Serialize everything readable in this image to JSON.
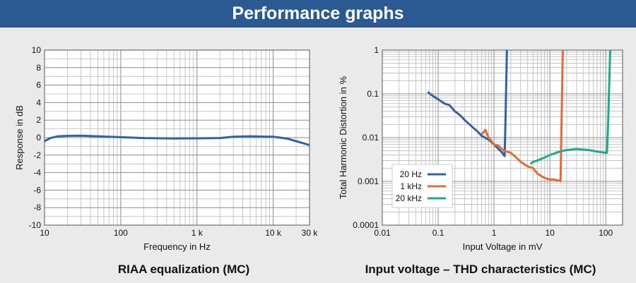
{
  "header": {
    "title": "Performance graphs"
  },
  "captions": {
    "left": "RIAA equalization (MC)",
    "right": "Input voltage – THD characteristics (MC)"
  },
  "chart_data": [
    {
      "type": "line",
      "xscale": "log",
      "xlim": [
        10,
        30000
      ],
      "ylim": [
        -10,
        10
      ],
      "xlabel": "Frequency in Hz",
      "ylabel": "Response in dB",
      "xticks": [
        10,
        100,
        1000,
        10000,
        30000
      ],
      "xtick_labels": [
        "10",
        "100",
        "1 k",
        "10 k",
        "30 k"
      ],
      "yticks": [
        10,
        8,
        6,
        4,
        2,
        0,
        -2,
        -4,
        -6,
        -8,
        -10
      ],
      "grid": true,
      "series": [
        {
          "color": "#2e63a6",
          "x": [
            10,
            12,
            15,
            20,
            30,
            50,
            100,
            200,
            500,
            1000,
            2000,
            3000,
            5000,
            10000,
            15000,
            20000,
            25000,
            30000
          ],
          "y": [
            -0.4,
            -0.05,
            0.15,
            0.2,
            0.22,
            0.15,
            0.05,
            -0.05,
            -0.1,
            -0.08,
            -0.05,
            0.1,
            0.15,
            0.1,
            -0.1,
            -0.4,
            -0.65,
            -0.85
          ]
        }
      ]
    },
    {
      "type": "line",
      "xscale": "log",
      "yscale": "log",
      "xlim": [
        0.01,
        200
      ],
      "ylim": [
        0.0001,
        1
      ],
      "xlabel": "Input Voltage in mV",
      "ylabel": "Total Harmonic Distortion in %",
      "xticks": [
        0.01,
        0.1,
        1,
        10,
        100
      ],
      "xtick_labels": [
        "0.01",
        "0.1",
        "1",
        "10",
        "100"
      ],
      "yticks": [
        1,
        0.1,
        0.01,
        0.001,
        0.0001
      ],
      "ytick_labels": [
        "1",
        "0.1",
        "0.01",
        "0.001",
        "0.0001"
      ],
      "grid": true,
      "legend": "bottom-left",
      "series": [
        {
          "name": "20 Hz",
          "color": "#2e63a6",
          "x": [
            0.065,
            0.08,
            0.1,
            0.13,
            0.16,
            0.2,
            0.25,
            0.3,
            0.4,
            0.5,
            0.6,
            0.8,
            1.0,
            1.2,
            1.4,
            1.5,
            1.55,
            1.6,
            1.7
          ],
          "y": [
            0.11,
            0.09,
            0.075,
            0.06,
            0.055,
            0.04,
            0.032,
            0.025,
            0.018,
            0.014,
            0.011,
            0.009,
            0.007,
            0.0055,
            0.0045,
            0.004,
            0.0038,
            0.02,
            1
          ]
        },
        {
          "name": "1 kHz",
          "color": "#e46b35",
          "x": [
            0.6,
            0.7,
            0.8,
            1.0,
            1.2,
            1.5,
            2.0,
            2.5,
            3.0,
            4.0,
            5.0,
            6.0,
            8.0,
            10,
            12,
            14,
            15,
            15.5,
            16,
            17
          ],
          "y": [
            0.012,
            0.015,
            0.01,
            0.007,
            0.0065,
            0.005,
            0.0045,
            0.0035,
            0.0028,
            0.0022,
            0.002,
            0.0015,
            0.0012,
            0.0011,
            0.0011,
            0.00105,
            0.00105,
            0.001,
            0.01,
            1
          ]
        },
        {
          "name": "20 kHz",
          "color": "#1fa98c",
          "x": [
            4.5,
            5,
            6,
            8,
            10,
            15,
            20,
            30,
            50,
            70,
            100,
            105,
            110,
            120
          ],
          "y": [
            0.0025,
            0.0028,
            0.003,
            0.0035,
            0.004,
            0.0048,
            0.0052,
            0.0055,
            0.0052,
            0.0048,
            0.0045,
            0.0045,
            0.02,
            1
          ]
        }
      ]
    }
  ]
}
